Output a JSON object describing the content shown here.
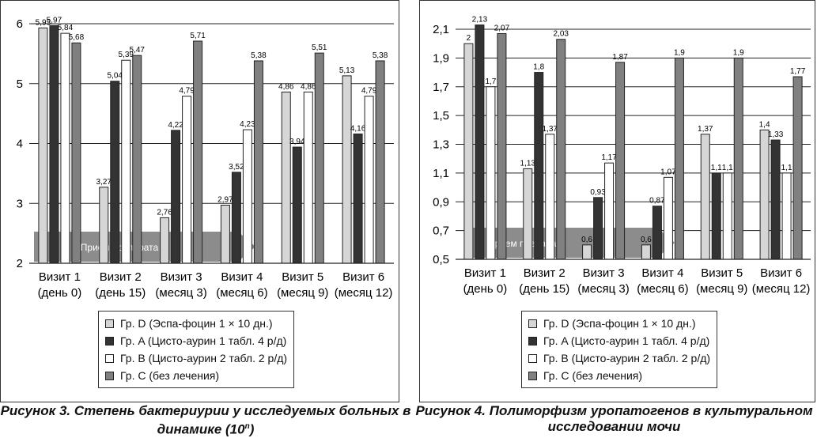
{
  "chart_data": [
    {
      "type": "bar",
      "title": "Рисунок 3. Степень бактериурии у исследуемых больных в динамике (10",
      "title_sup": "n",
      "title_end": ")",
      "ylim": [
        2,
        6
      ],
      "yticks": [
        "2",
        "3",
        "4",
        "5",
        "6"
      ],
      "grid": true,
      "categories": [
        [
          "Визит 1",
          "(день 0)"
        ],
        [
          "Визит 2",
          "(день 15)"
        ],
        [
          "Визит 3",
          "(месяц 3)"
        ],
        [
          "Визит 4",
          "(месяц 6)"
        ],
        [
          "Визит 5",
          "(месяц 9)"
        ],
        [
          "Визит 6",
          "(месяц 12)"
        ]
      ],
      "series": [
        {
          "name": "Гр. D (Эспа-фоцин 1 × 10 дн.)",
          "color": "#d6d6d6",
          "values": [
            5.93,
            3.27,
            2.76,
            2.97,
            4.86,
            5.13
          ],
          "labels": [
            "5,93",
            "3,27",
            "2,76",
            "2,97",
            "4,86",
            "5,13"
          ]
        },
        {
          "name": "Гр. A (Цисто-аурин 1 табл. 4 р/д)",
          "color": "#333333",
          "values": [
            5.97,
            5.04,
            4.22,
            3.52,
            3.94,
            4.16
          ],
          "labels": [
            "5,97",
            "5,04",
            "4,22",
            "3,52",
            "3,94",
            "4,16"
          ]
        },
        {
          "name": "Гр. B (Цисто-аурин 2 табл. 2 р/д)",
          "color": "#ffffff",
          "values": [
            5.84,
            5.39,
            4.79,
            4.23,
            4.86,
            4.79
          ],
          "labels": [
            "5,84",
            "5,39",
            "4,79",
            "4,23",
            "4,86",
            "4,79"
          ]
        },
        {
          "name": "Гр. C (без лечения)",
          "color": "#808080",
          "values": [
            5.68,
            5.47,
            5.71,
            5.38,
            5.51,
            5.38
          ],
          "labels": [
            "5,68",
            "5,47",
            "5,71",
            "5,38",
            "5,51",
            "5,38"
          ]
        }
      ],
      "annotation": "Прием препарата",
      "legend_position": "bottom"
    },
    {
      "type": "bar",
      "title": "Рисунок 4. Полиморфизм уропатогенов в культуральном исследовании мочи",
      "ylim": [
        0.5,
        2.1
      ],
      "yticks": [
        "0,5",
        "0,7",
        "0,9",
        "1,1",
        "1,3",
        "1,5",
        "1,7",
        "1,9",
        "2,1"
      ],
      "grid": true,
      "categories": [
        [
          "Визит 1",
          "(день 0)"
        ],
        [
          "Визит 2",
          "(день 15)"
        ],
        [
          "Визит 3",
          "(месяц 3)"
        ],
        [
          "Визит 4",
          "(месяц 6)"
        ],
        [
          "Визит 5",
          "(месяц 9)"
        ],
        [
          "Визит 6",
          "(месяц 12)"
        ]
      ],
      "series": [
        {
          "name": "Гр. D (Эспа-фоцин 1 × 10 дн.)",
          "color": "#d6d6d6",
          "values": [
            2.0,
            1.13,
            0.6,
            0.6,
            1.37,
            1.4
          ],
          "labels": [
            "2",
            "1,13",
            "0,6",
            "0,6",
            "1,37",
            "1,4"
          ]
        },
        {
          "name": "Гр. A (Цисто-аурин 1 табл. 4 р/д)",
          "color": "#333333",
          "values": [
            2.13,
            1.8,
            0.93,
            0.87,
            1.1,
            1.33
          ],
          "labels": [
            "2,13",
            "1,8",
            "0,93",
            "0,87",
            "1,1",
            "1,33"
          ]
        },
        {
          "name": "Гр. B (Цисто-аурин 2 табл. 2 р/д)",
          "color": "#ffffff",
          "values": [
            1.7,
            1.37,
            1.17,
            1.07,
            1.1,
            1.1
          ],
          "labels": [
            "1,7",
            "1,37",
            "1,17",
            "1,07",
            "1,1",
            "1,1"
          ]
        },
        {
          "name": "Гр. C (без лечения)",
          "color": "#808080",
          "values": [
            2.07,
            2.03,
            1.87,
            1.9,
            1.9,
            1.77
          ],
          "labels": [
            "2,07",
            "2,03",
            "1,87",
            "1,9",
            "1,9",
            "1,77"
          ]
        }
      ],
      "annotation": "Прием препарата",
      "legend_position": "bottom"
    }
  ]
}
